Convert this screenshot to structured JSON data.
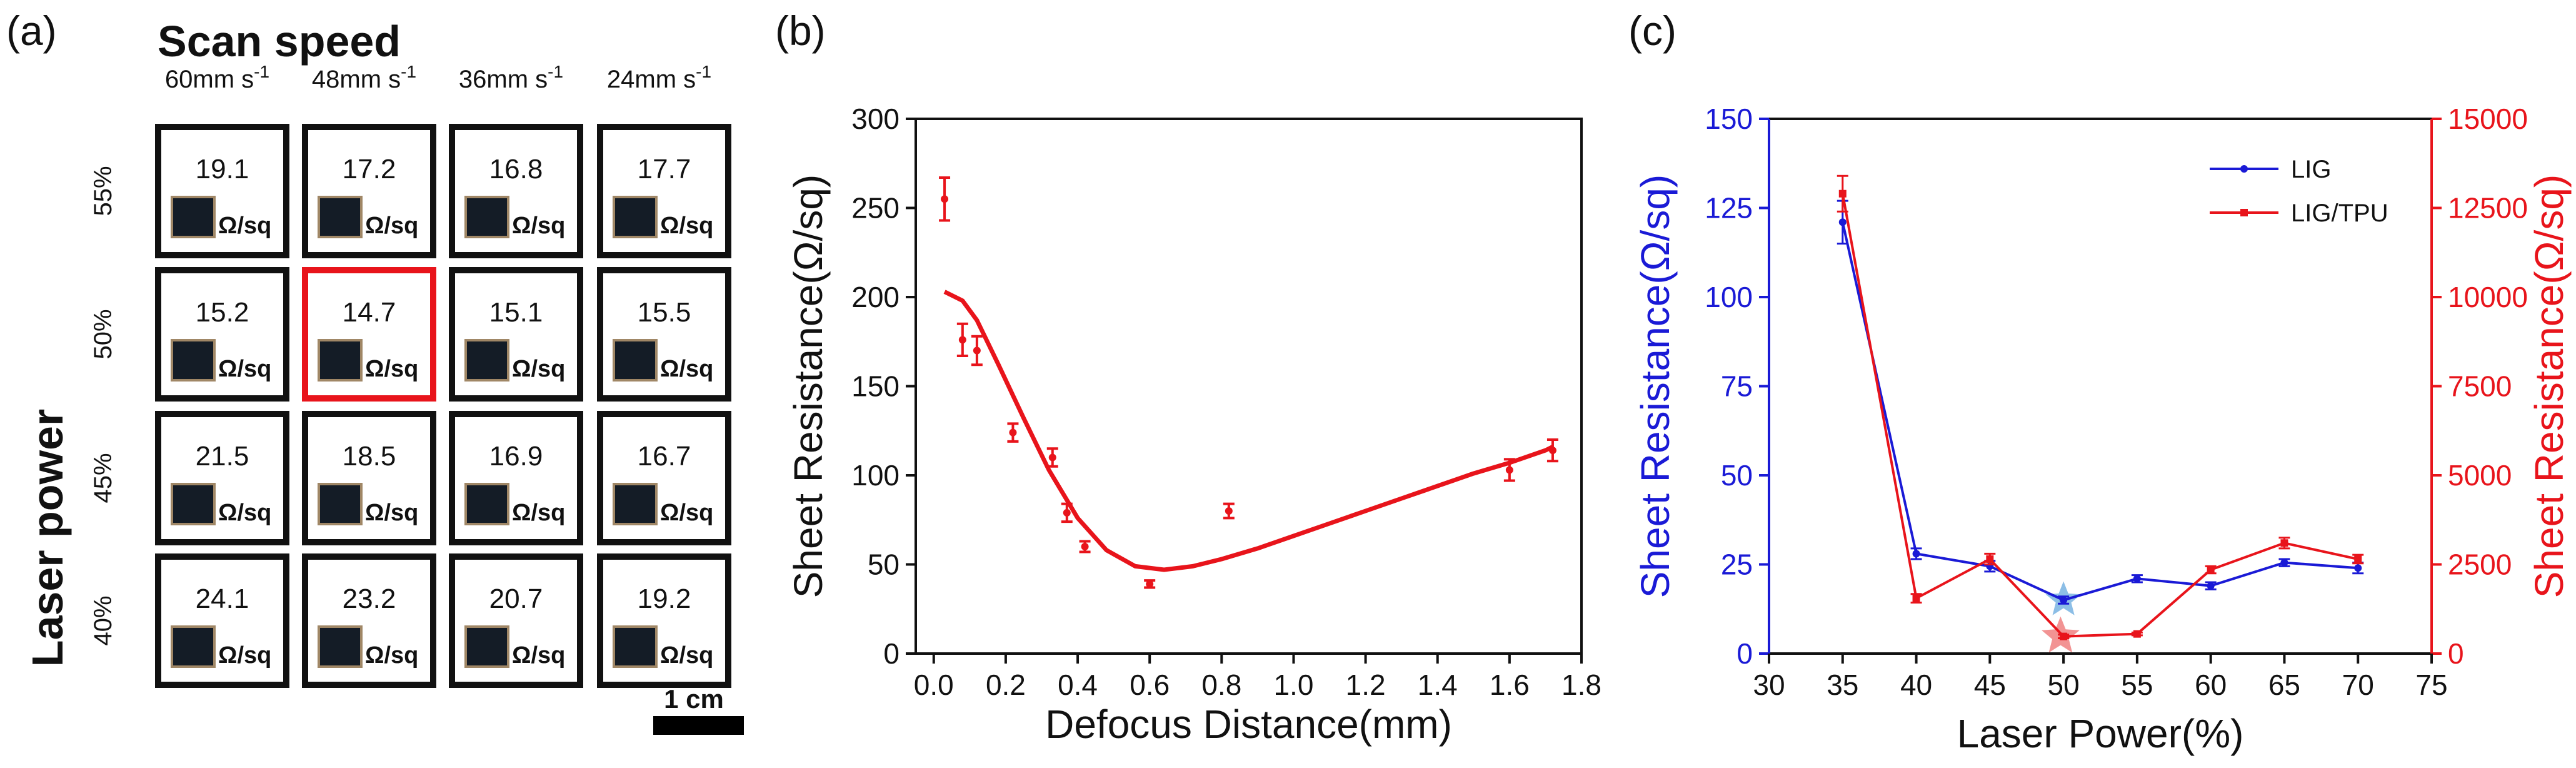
{
  "panels": {
    "a": {
      "label": "(a)",
      "header": "Scan speed",
      "speeds": [
        {
          "value": "60mm s",
          "sup": "-1"
        },
        {
          "value": "48mm s",
          "sup": "-1"
        },
        {
          "value": "36mm s",
          "sup": "-1"
        },
        {
          "value": "24mm s",
          "sup": "-1"
        }
      ],
      "power_title": "Laser power",
      "powers": [
        "55%",
        "50%",
        "45%",
        "40%"
      ],
      "unit": "Ω/sq",
      "cells": [
        [
          "19.1",
          "17.2",
          "16.8",
          "17.7"
        ],
        [
          "15.2",
          "14.7",
          "15.1",
          "15.5"
        ],
        [
          "21.5",
          "18.5",
          "16.9",
          "16.7"
        ],
        [
          "24.1",
          "23.2",
          "20.7",
          "19.2"
        ]
      ],
      "highlight": {
        "row": 1,
        "col": 1
      },
      "scalebar_label": "1 cm",
      "colors": {
        "border": "#111111",
        "highlight": "#e8141b",
        "swatch_dark": "#141c26",
        "swatch_rim": "#a08766"
      }
    },
    "b": {
      "label": "(b)"
    },
    "c": {
      "label": "(c)"
    }
  },
  "chart_data": [
    {
      "id": "b",
      "type": "scatter",
      "xlabel": "Defocus Distance(mm)",
      "ylabel": "Sheet Resistance(Ω/sq)",
      "xlim": [
        -0.05,
        1.8
      ],
      "ylim": [
        0,
        300
      ],
      "xticks": [
        "0.0",
        "0.2",
        "0.4",
        "0.6",
        "0.8",
        "1.0",
        "1.2",
        "1.4",
        "1.6",
        "1.8"
      ],
      "yticks": [
        "0",
        "50",
        "100",
        "150",
        "200",
        "250",
        "300"
      ],
      "color": "#e8141b",
      "points": [
        {
          "x": 0.03,
          "y": 255,
          "err": 12
        },
        {
          "x": 0.08,
          "y": 176,
          "err": 9
        },
        {
          "x": 0.12,
          "y": 170,
          "err": 8
        },
        {
          "x": 0.22,
          "y": 124,
          "err": 5
        },
        {
          "x": 0.33,
          "y": 110,
          "err": 5
        },
        {
          "x": 0.37,
          "y": 79,
          "err": 5
        },
        {
          "x": 0.42,
          "y": 60,
          "err": 3
        },
        {
          "x": 0.6,
          "y": 39,
          "err": 2
        },
        {
          "x": 0.82,
          "y": 80,
          "err": 4
        },
        {
          "x": 1.6,
          "y": 103,
          "err": 6
        },
        {
          "x": 1.72,
          "y": 114,
          "err": 6
        }
      ],
      "fit": {
        "x": [
          0.03,
          0.08,
          0.12,
          0.18,
          0.25,
          0.32,
          0.4,
          0.48,
          0.56,
          0.64,
          0.72,
          0.8,
          0.9,
          1.0,
          1.1,
          1.2,
          1.3,
          1.4,
          1.5,
          1.6,
          1.7,
          1.72
        ],
        "y": [
          203,
          198,
          187,
          162,
          132,
          103,
          76,
          58,
          49,
          47,
          49,
          53,
          59,
          66,
          73,
          80,
          87,
          94,
          101,
          107,
          114,
          116
        ]
      }
    },
    {
      "id": "c",
      "type": "line",
      "xlabel": "Laser Power(%)",
      "ylabel_left": "Sheet Resistance(Ω/sq)",
      "ylabel_right": "Sheet Resistance(Ω/sq)",
      "xlim": [
        30,
        75
      ],
      "ylim_left": [
        0,
        150
      ],
      "ylim_right": [
        0,
        15000
      ],
      "xticks": [
        "30",
        "35",
        "40",
        "45",
        "50",
        "55",
        "60",
        "65",
        "70",
        "75"
      ],
      "yticks_left": [
        "0",
        "25",
        "50",
        "75",
        "100",
        "125",
        "150"
      ],
      "yticks_right": [
        "0",
        "2500",
        "5000",
        "7500",
        "10000",
        "12500",
        "15000"
      ],
      "legend_position": "top-right",
      "x": [
        35,
        40,
        45,
        50,
        55,
        60,
        65,
        70
      ],
      "series": [
        {
          "name": "LIG",
          "axis": "left",
          "color": "#1a1ad6",
          "values": [
            121,
            28,
            24.5,
            15,
            21,
            19,
            25.5,
            24
          ],
          "errors": [
            6,
            1.5,
            1.5,
            1,
            1,
            1,
            1,
            1.5
          ]
        },
        {
          "name": "LIG/TPU",
          "axis": "right",
          "color": "#e8141b",
          "values": [
            12900,
            1550,
            2650,
            480,
            550,
            2350,
            3100,
            2650
          ],
          "errors": [
            500,
            120,
            150,
            50,
            40,
            100,
            150,
            120
          ]
        }
      ],
      "star_color_left": "#7fb7e3",
      "star_color_right": "#f08080"
    }
  ]
}
